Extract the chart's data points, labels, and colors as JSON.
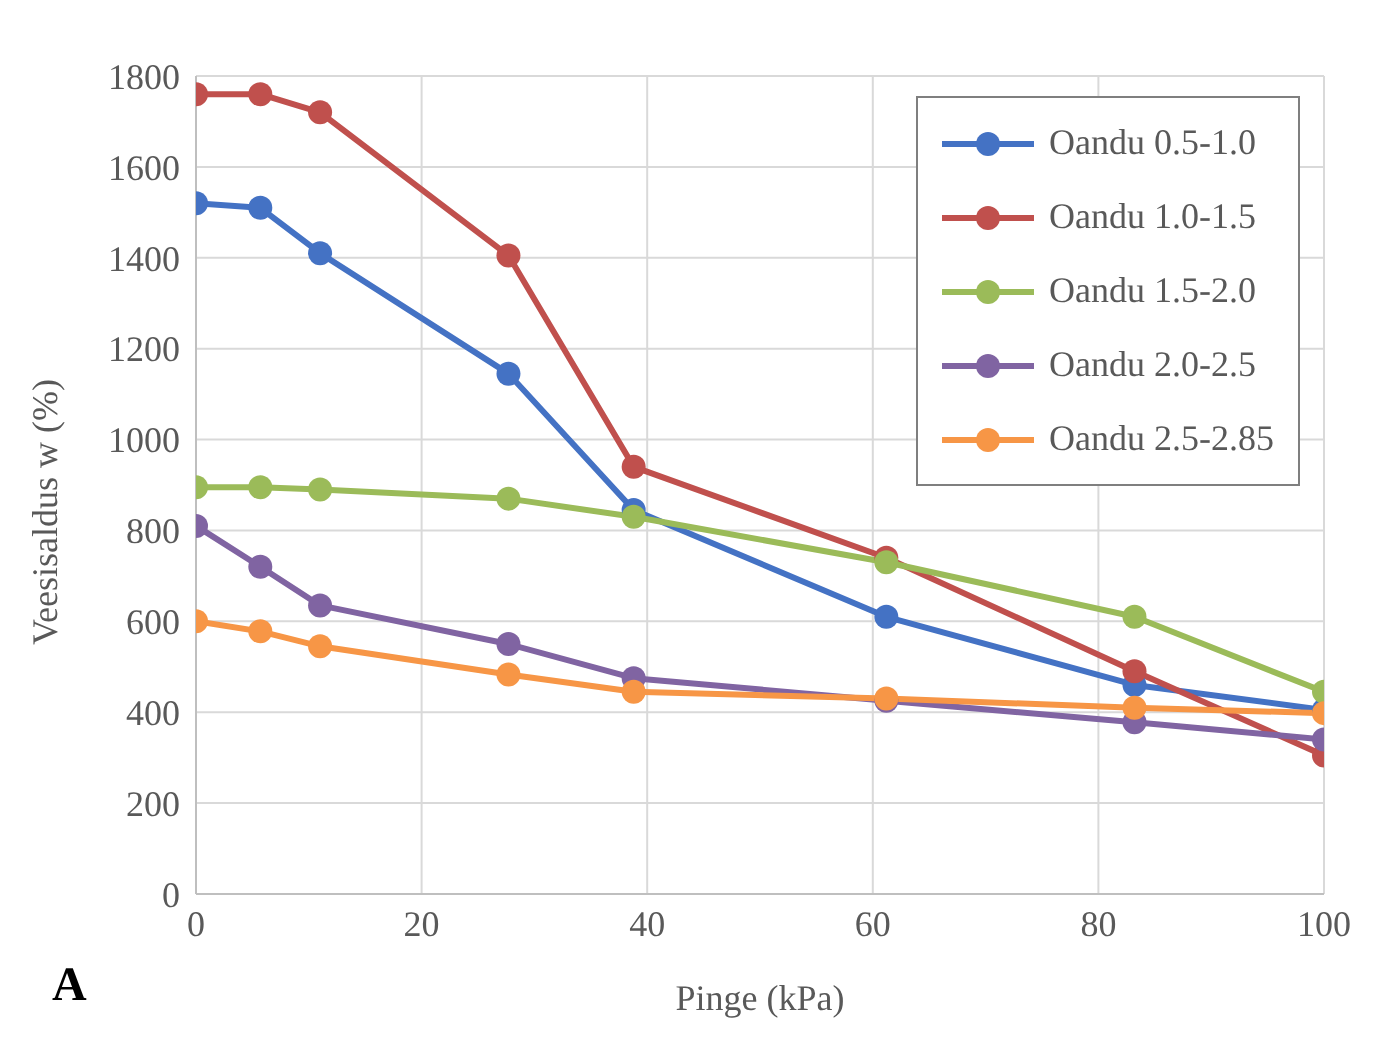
{
  "chart_data": {
    "type": "line",
    "xlabel": "Pinge (kPa)",
    "ylabel": "Veesisaldus w (%)",
    "annotations": [
      "A"
    ],
    "x": [
      0,
      5.7,
      11,
      27.7,
      38.8,
      61.2,
      83.2,
      100
    ],
    "series": [
      {
        "name": "Oandu 0.5-1.0",
        "color": "#4472c4",
        "values": [
          1520,
          1510,
          1410,
          1145,
          845,
          610,
          460,
          405
        ]
      },
      {
        "name": "Oandu 1.0-1.5",
        "color": "#c0504d",
        "values": [
          1760,
          1760,
          1720,
          1405,
          940,
          740,
          490,
          305
        ]
      },
      {
        "name": "Oandu 1.5-2.0",
        "color": "#9bbb59",
        "values": [
          895,
          895,
          890,
          870,
          830,
          730,
          610,
          445
        ]
      },
      {
        "name": "Oandu 2.0-2.5",
        "color": "#8064a2",
        "values": [
          810,
          720,
          635,
          550,
          475,
          425,
          378,
          340
        ]
      },
      {
        "name": "Oandu 2.5-2.85",
        "color": "#f79646",
        "values": [
          600,
          578,
          545,
          483,
          445,
          430,
          410,
          398
        ]
      }
    ],
    "xlim": [
      0,
      100
    ],
    "xticks": [
      0,
      20,
      40,
      60,
      80,
      100
    ],
    "ylim": [
      0,
      1800
    ],
    "yticks": [
      0,
      200,
      400,
      600,
      800,
      1000,
      1200,
      1400,
      1600,
      1800
    ],
    "grid": true,
    "legend": "top right",
    "marker": "circle",
    "line_style": "solid"
  }
}
